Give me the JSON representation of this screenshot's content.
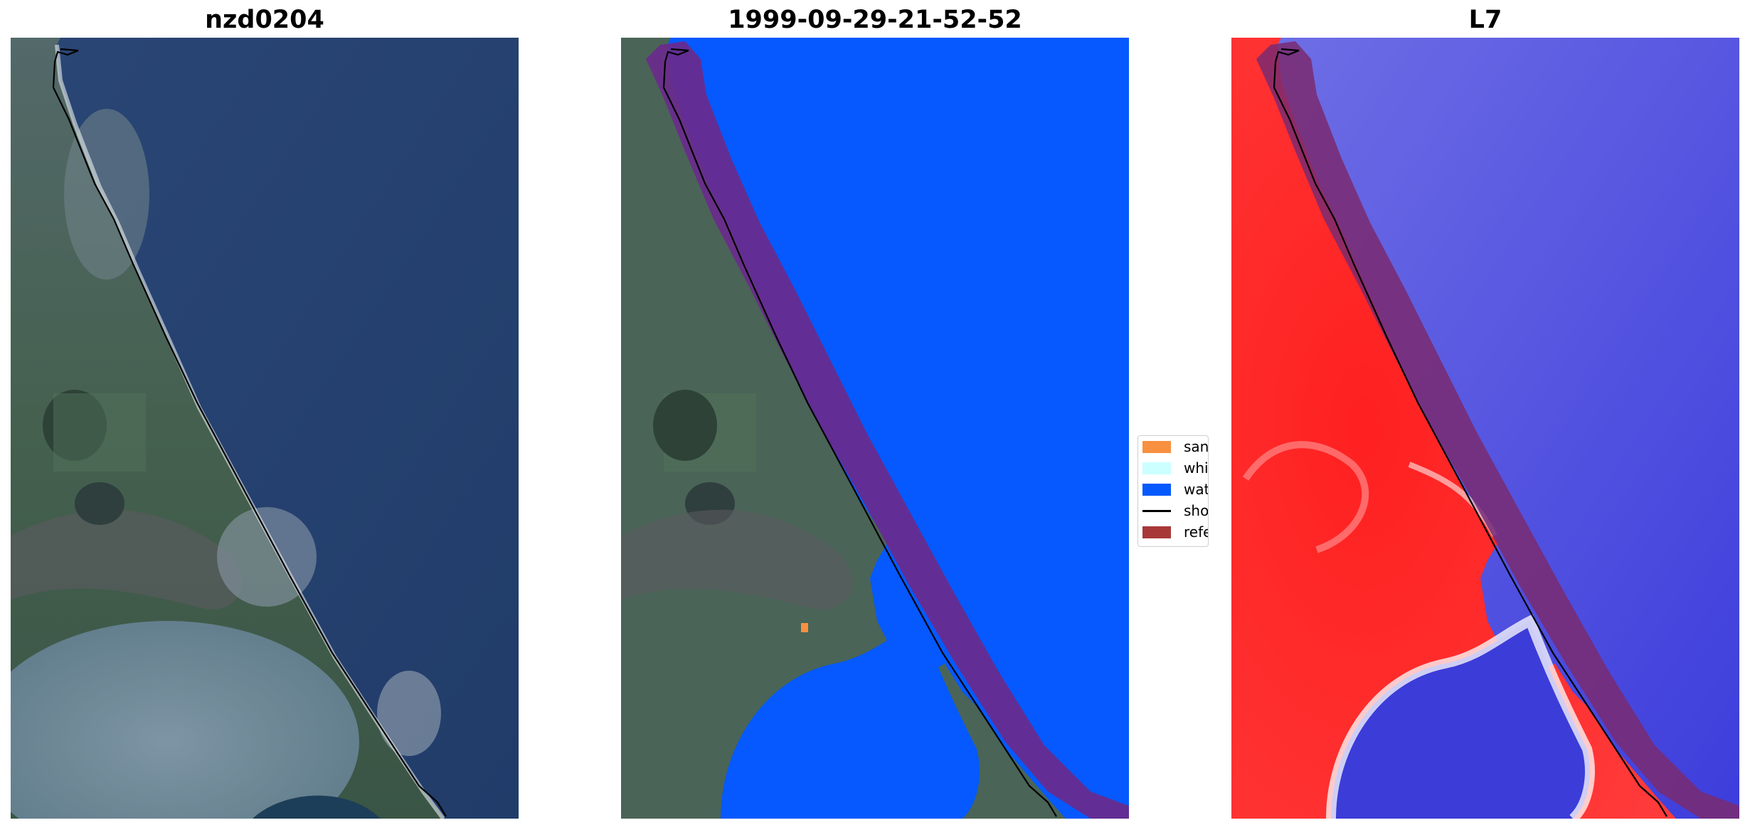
{
  "panels": [
    {
      "title": "nzd0204",
      "content": "rgb-satellite-image-with-shoreline"
    },
    {
      "title": "1999-09-29-21-52-52",
      "content": "classification-overlay-with-reference-buffer"
    },
    {
      "title": "L7",
      "content": "water-index-image-with-reference-buffer"
    }
  ],
  "legend": {
    "items": [
      {
        "label": "sand",
        "color": "#f89040",
        "kind": "patch"
      },
      {
        "label": "whitewater",
        "color": "#ccffff",
        "kind": "patch"
      },
      {
        "label": "water",
        "color": "#0059ff",
        "kind": "patch"
      },
      {
        "label": "shoreline",
        "color": "#000000",
        "kind": "line"
      },
      {
        "label": "reference shoreline buffer",
        "color": "#a83838",
        "kind": "patch"
      }
    ]
  },
  "colors": {
    "ocean": "#25406f",
    "land_green": "#3f5a4a",
    "water_class": "#0559ff",
    "buffer": "#6a2a8c",
    "index_land": "#ff2a2a",
    "index_water": "#4b4bdd"
  }
}
